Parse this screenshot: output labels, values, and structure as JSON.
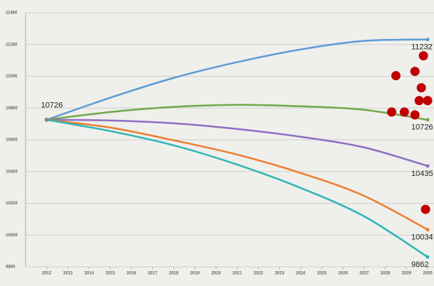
{
  "chart_data": {
    "type": "line",
    "x": [
      2012,
      2015,
      2018,
      2021,
      2024,
      2027,
      2030
    ],
    "series": [
      {
        "color": "#5b9bd5",
        "values": [
          10726,
          10865,
          10990,
          11089,
          11169,
          11223,
          11232
        ]
      },
      {
        "color": "#70a84a",
        "values": [
          10726,
          10775,
          10807,
          10820,
          10811,
          10789,
          10726
        ]
      },
      {
        "color": "#8e6fc1",
        "values": [
          10726,
          10722,
          10704,
          10668,
          10619,
          10552,
          10435
        ]
      },
      {
        "color": "#ed7d31",
        "values": [
          10726,
          10677,
          10597,
          10507,
          10391,
          10247,
          10034
        ]
      },
      {
        "color": "#2fb5b5",
        "values": [
          10726,
          10655,
          10565,
          10444,
          10297,
          10118,
          9862
        ]
      }
    ],
    "points": {
      "color": "#c00000",
      "x": [
        2028.5,
        2029.4,
        2029.8,
        2029.7,
        2029.6,
        2030.0,
        2028.3,
        2028.9,
        2029.4,
        2029.9
      ],
      "y": [
        11004,
        11031,
        11129,
        10928,
        10847,
        10847,
        10775,
        10775,
        10757,
        10162
      ]
    },
    "xlim": [
      2011,
      2030.3
    ],
    "xticks": [
      2012,
      2013,
      2014,
      2015,
      2016,
      2017,
      2018,
      2019,
      2020,
      2021,
      2022,
      2023,
      2024,
      2025,
      2026,
      2027,
      2028,
      2029,
      2030
    ],
    "ylim": [
      9800,
      11400
    ],
    "yticks": [
      9800,
      10000,
      10200,
      10400,
      10600,
      10800,
      11000,
      11200,
      11400
    ],
    "grid": true
  }
}
